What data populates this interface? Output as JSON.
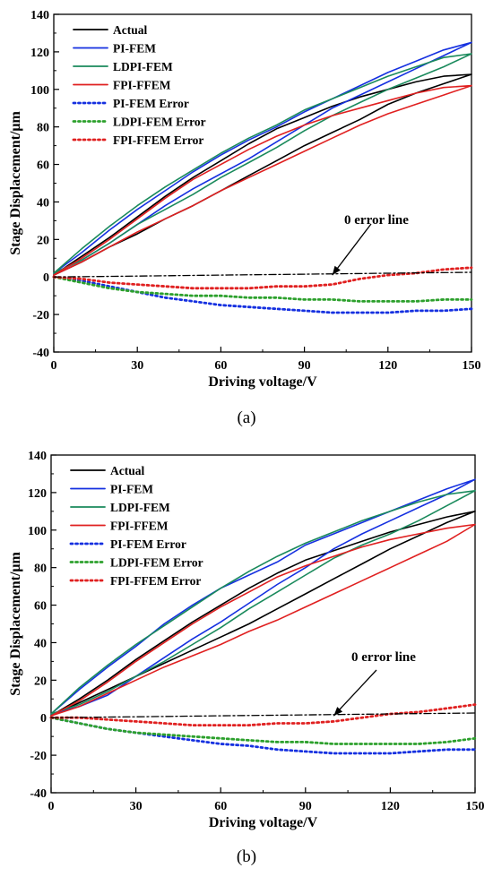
{
  "chart_data": [
    {
      "type": "line",
      "panel_label": "(a)",
      "xlabel": "Driving voltage/V",
      "ylabel": "Stage Displacement/μm",
      "xlim": [
        0,
        150
      ],
      "ylim": [
        -40,
        140
      ],
      "xticks": [
        0,
        30,
        60,
        90,
        120,
        150
      ],
      "yticks": [
        -40,
        -20,
        0,
        20,
        40,
        60,
        80,
        100,
        120,
        140
      ],
      "grid": false,
      "legend_position": "top-left",
      "annotation": {
        "text": "0 error line",
        "points_to": [
          100,
          1
        ]
      },
      "series": [
        {
          "name": "Actual",
          "color": "#000000",
          "style": "solid",
          "x": [
            0,
            10,
            20,
            30,
            40,
            50,
            60,
            70,
            80,
            90,
            100,
            110,
            120,
            130,
            140,
            150,
            140,
            130,
            120,
            110,
            100,
            90,
            80,
            70,
            60,
            50,
            40,
            30,
            20,
            10,
            0
          ],
          "y": [
            1,
            8,
            16,
            23,
            31,
            38,
            46,
            54,
            62,
            70,
            77,
            84,
            92,
            98,
            103,
            108,
            107,
            104,
            100,
            96,
            91,
            85,
            79,
            71,
            62,
            53,
            43,
            32,
            21,
            11,
            1
          ]
        },
        {
          "name": "PI-FEM",
          "color": "#1530e0",
          "style": "solid",
          "x": [
            0,
            10,
            20,
            30,
            40,
            50,
            60,
            70,
            80,
            90,
            100,
            110,
            120,
            130,
            140,
            150,
            140,
            130,
            120,
            110,
            100,
            90,
            80,
            70,
            60,
            50,
            40,
            30,
            20,
            10,
            0
          ],
          "y": [
            2,
            9,
            18,
            28,
            38,
            47,
            55,
            63,
            72,
            81,
            90,
            97,
            104,
            111,
            118,
            125,
            121,
            115,
            109,
            102,
            95,
            88,
            80,
            73,
            65,
            56,
            46,
            36,
            25,
            13,
            2
          ]
        },
        {
          "name": "LDPI-FEM",
          "color": "#1a8a5c",
          "style": "solid",
          "x": [
            0,
            10,
            20,
            30,
            40,
            50,
            60,
            70,
            80,
            90,
            100,
            110,
            120,
            130,
            140,
            150,
            140,
            130,
            120,
            110,
            100,
            90,
            80,
            70,
            60,
            50,
            40,
            30,
            20,
            10,
            0
          ],
          "y": [
            2,
            9,
            18,
            28,
            36,
            44,
            53,
            61,
            69,
            78,
            86,
            93,
            100,
            106,
            112,
            119,
            117,
            112,
            107,
            101,
            95,
            89,
            81,
            74,
            66,
            57,
            48,
            38,
            27,
            15,
            2
          ]
        },
        {
          "name": "FPI-FFEM",
          "color": "#e02020",
          "style": "solid",
          "x": [
            0,
            10,
            20,
            30,
            40,
            50,
            60,
            70,
            80,
            90,
            100,
            110,
            120,
            130,
            140,
            150,
            140,
            130,
            120,
            110,
            100,
            90,
            80,
            70,
            60,
            50,
            40,
            30,
            20,
            10,
            0
          ],
          "y": [
            1,
            8,
            16,
            24,
            31,
            38,
            46,
            53,
            60,
            67,
            74,
            81,
            87,
            92,
            97,
            102,
            101,
            98,
            94,
            90,
            86,
            81,
            75,
            68,
            60,
            52,
            42,
            31,
            20,
            10,
            1
          ]
        },
        {
          "name": "PI-FEM  Error",
          "color": "#1530e0",
          "style": "dotted",
          "x": [
            0,
            10,
            20,
            30,
            40,
            50,
            60,
            70,
            80,
            90,
            100,
            110,
            120,
            130,
            140,
            150
          ],
          "y": [
            0,
            -2,
            -5,
            -8,
            -11,
            -13,
            -15,
            -16,
            -17,
            -18,
            -19,
            -19,
            -19,
            -18,
            -18,
            -17
          ]
        },
        {
          "name": "LDPI-FEM  Error",
          "color": "#2ca02c",
          "style": "dotted",
          "x": [
            0,
            10,
            20,
            30,
            40,
            50,
            60,
            70,
            80,
            90,
            100,
            110,
            120,
            130,
            140,
            150
          ],
          "y": [
            0,
            -3,
            -6,
            -8,
            -9,
            -10,
            -10,
            -11,
            -11,
            -12,
            -12,
            -13,
            -13,
            -13,
            -12,
            -12
          ]
        },
        {
          "name": "FPI-FFEM Error",
          "color": "#e02020",
          "style": "dotted",
          "x": [
            0,
            10,
            20,
            30,
            40,
            50,
            60,
            70,
            80,
            90,
            100,
            110,
            120,
            130,
            140,
            150
          ],
          "y": [
            0,
            -1,
            -3,
            -4,
            -5,
            -6,
            -6,
            -6,
            -5,
            -5,
            -4,
            -1,
            1,
            2,
            4,
            5
          ]
        },
        {
          "name": "",
          "color": "#000000",
          "style": "dashdot",
          "x": [
            0,
            30,
            60,
            90,
            120,
            150
          ],
          "y": [
            0,
            0.5,
            1,
            1.5,
            2,
            2.5
          ]
        }
      ]
    },
    {
      "type": "line",
      "panel_label": "(b)",
      "xlabel": "Driving voltage/V",
      "ylabel": "Stage Displacement/μm",
      "xlim": [
        0,
        150
      ],
      "ylim": [
        -40,
        140
      ],
      "xticks": [
        0,
        30,
        60,
        90,
        120,
        150
      ],
      "yticks": [
        -40,
        -20,
        0,
        20,
        40,
        60,
        80,
        100,
        120,
        140
      ],
      "grid": false,
      "legend_position": "top-left",
      "annotation": {
        "text": "0 error line",
        "points_to": [
          100,
          1
        ]
      },
      "series": [
        {
          "name": "Actual",
          "color": "#000000",
          "style": "solid",
          "x": [
            0,
            10,
            20,
            30,
            40,
            50,
            60,
            70,
            80,
            90,
            100,
            110,
            120,
            130,
            140,
            150,
            140,
            130,
            120,
            110,
            100,
            90,
            80,
            70,
            60,
            50,
            40,
            30,
            20,
            10,
            0
          ],
          "y": [
            1,
            8,
            15,
            22,
            29,
            36,
            43,
            50,
            58,
            66,
            74,
            82,
            90,
            97,
            104,
            110,
            107,
            103,
            99,
            94,
            89,
            84,
            77,
            69,
            60,
            51,
            41,
            31,
            20,
            10,
            1
          ]
        },
        {
          "name": "PI-FEM",
          "color": "#1530e0",
          "style": "solid",
          "x": [
            0,
            10,
            20,
            30,
            40,
            50,
            60,
            70,
            80,
            90,
            100,
            110,
            120,
            130,
            140,
            150,
            140,
            130,
            120,
            110,
            100,
            90,
            80,
            70,
            60,
            50,
            40,
            30,
            20,
            10,
            0
          ],
          "y": [
            2,
            6,
            12,
            22,
            32,
            42,
            51,
            61,
            71,
            80,
            90,
            98,
            105,
            112,
            119,
            127,
            122,
            116,
            110,
            104,
            98,
            92,
            83,
            76,
            69,
            60,
            50,
            38,
            27,
            15,
            2
          ]
        },
        {
          "name": "LDPI-FEM",
          "color": "#1a8a5c",
          "style": "solid",
          "x": [
            0,
            10,
            20,
            30,
            40,
            50,
            60,
            70,
            80,
            90,
            100,
            110,
            120,
            130,
            140,
            150,
            140,
            130,
            120,
            110,
            100,
            90,
            80,
            70,
            60,
            50,
            40,
            30,
            20,
            10,
            0
          ],
          "y": [
            2,
            7,
            14,
            22,
            30,
            39,
            48,
            58,
            67,
            76,
            85,
            92,
            98,
            105,
            113,
            121,
            119,
            115,
            110,
            105,
            99,
            93,
            86,
            78,
            69,
            59,
            49,
            39,
            28,
            16,
            2
          ]
        },
        {
          "name": "FPI-FFEM",
          "color": "#e02020",
          "style": "solid",
          "x": [
            0,
            10,
            20,
            30,
            40,
            50,
            60,
            70,
            80,
            90,
            100,
            110,
            120,
            130,
            140,
            150,
            140,
            130,
            120,
            110,
            100,
            90,
            80,
            70,
            60,
            50,
            40,
            30,
            20,
            10,
            0
          ],
          "y": [
            1,
            6,
            13,
            20,
            27,
            33,
            39,
            46,
            52,
            59,
            66,
            73,
            80,
            87,
            94,
            103,
            101,
            98,
            95,
            91,
            86,
            81,
            75,
            67,
            59,
            50,
            40,
            30,
            19,
            9,
            1
          ]
        },
        {
          "name": "PI-FEM  Error",
          "color": "#1530e0",
          "style": "dotted",
          "x": [
            0,
            10,
            20,
            30,
            40,
            50,
            60,
            70,
            80,
            90,
            100,
            110,
            120,
            130,
            140,
            150
          ],
          "y": [
            0,
            -3,
            -6,
            -8,
            -10,
            -12,
            -14,
            -15,
            -17,
            -18,
            -19,
            -19,
            -19,
            -18,
            -17,
            -17
          ]
        },
        {
          "name": "LDPI-FEM  Error",
          "color": "#2ca02c",
          "style": "dotted",
          "x": [
            0,
            10,
            20,
            30,
            40,
            50,
            60,
            70,
            80,
            90,
            100,
            110,
            120,
            130,
            140,
            150
          ],
          "y": [
            0,
            -3,
            -6,
            -8,
            -9,
            -10,
            -11,
            -12,
            -13,
            -13,
            -14,
            -14,
            -14,
            -14,
            -13,
            -11
          ]
        },
        {
          "name": "FPI-FFEM Error",
          "color": "#e02020",
          "style": "dotted",
          "x": [
            0,
            10,
            20,
            30,
            40,
            50,
            60,
            70,
            80,
            90,
            100,
            110,
            120,
            130,
            140,
            150
          ],
          "y": [
            0,
            0,
            -1,
            -2,
            -3,
            -4,
            -4,
            -4,
            -3,
            -3,
            -2,
            0,
            2,
            3,
            5,
            7
          ]
        },
        {
          "name": "",
          "color": "#000000",
          "style": "dashdot",
          "x": [
            0,
            30,
            60,
            90,
            120,
            150
          ],
          "y": [
            0,
            0.5,
            1,
            1.5,
            2,
            2.5
          ]
        }
      ]
    }
  ]
}
